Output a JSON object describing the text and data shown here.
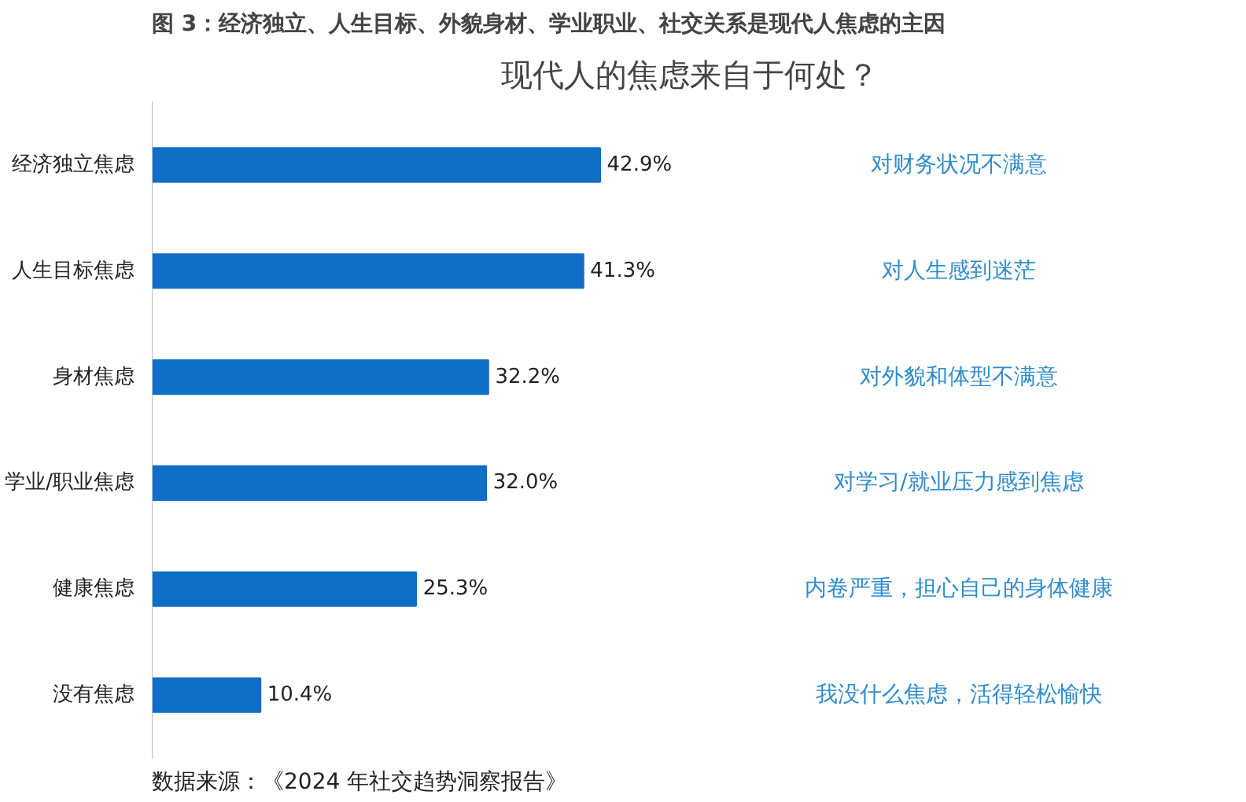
{
  "chart_data": {
    "type": "bar",
    "orientation": "horizontal",
    "title": "图 3：经济独立、人生目标、外貌身材、学业职业、社交关系是现代人焦虑的主因",
    "subtitle": "现代人的焦虑来自于何处？",
    "categories": [
      "经济独立焦虑",
      "人生目标焦虑",
      "身材焦虑",
      "学业/职业焦虑",
      "健康焦虑",
      "没有焦虑"
    ],
    "values": [
      42.9,
      41.3,
      32.2,
      32.0,
      25.3,
      10.4
    ],
    "value_labels": [
      "42.9%",
      "41.3%",
      "32.2%",
      "32.0%",
      "25.3%",
      "10.4%"
    ],
    "color": "#0f6fc6",
    "grid": false,
    "tick_labels": "y",
    "annotations": [
      "对财务状况不满意",
      "对人生感到迷茫",
      "对外貌和体型不满意",
      "对学习/就业压力感到焦虑",
      "内卷严重，担心自己的身体健康",
      "我没什么焦虑，活得轻松愉快",
      "数据来源：《2024 年社交趋势洞察报告》"
    ]
  }
}
